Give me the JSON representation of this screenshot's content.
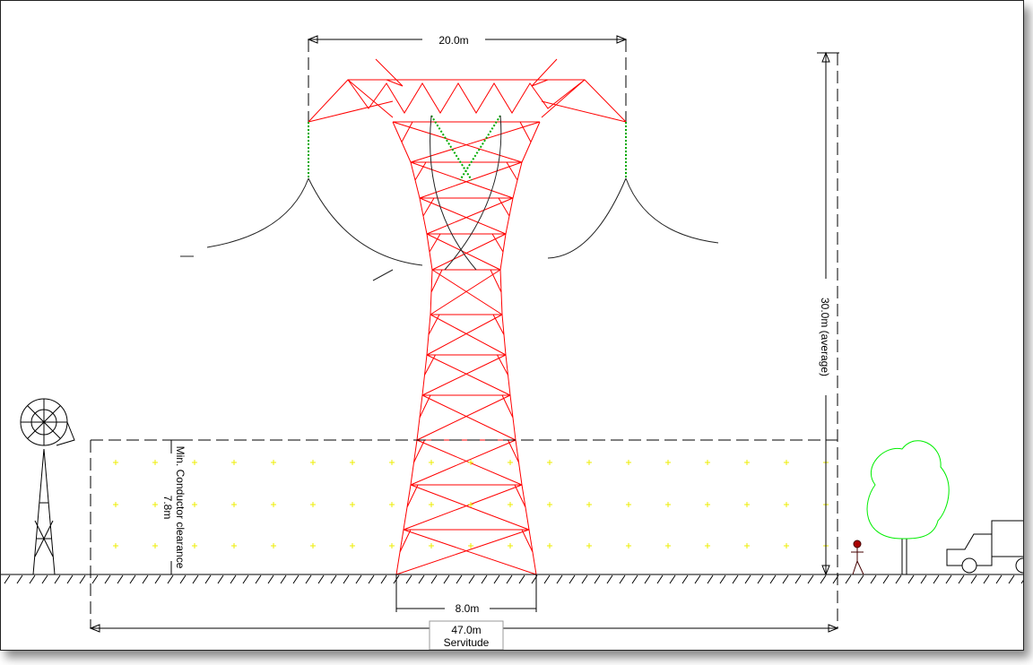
{
  "dimensions": {
    "top_width": "20.0m",
    "height": "30.0m (average)",
    "clearance_label": "Min. Conductor clearance",
    "clearance": "7.8m",
    "base_width": "8.0m",
    "servitude_width": "47.0m",
    "servitude": "Servitude"
  }
}
